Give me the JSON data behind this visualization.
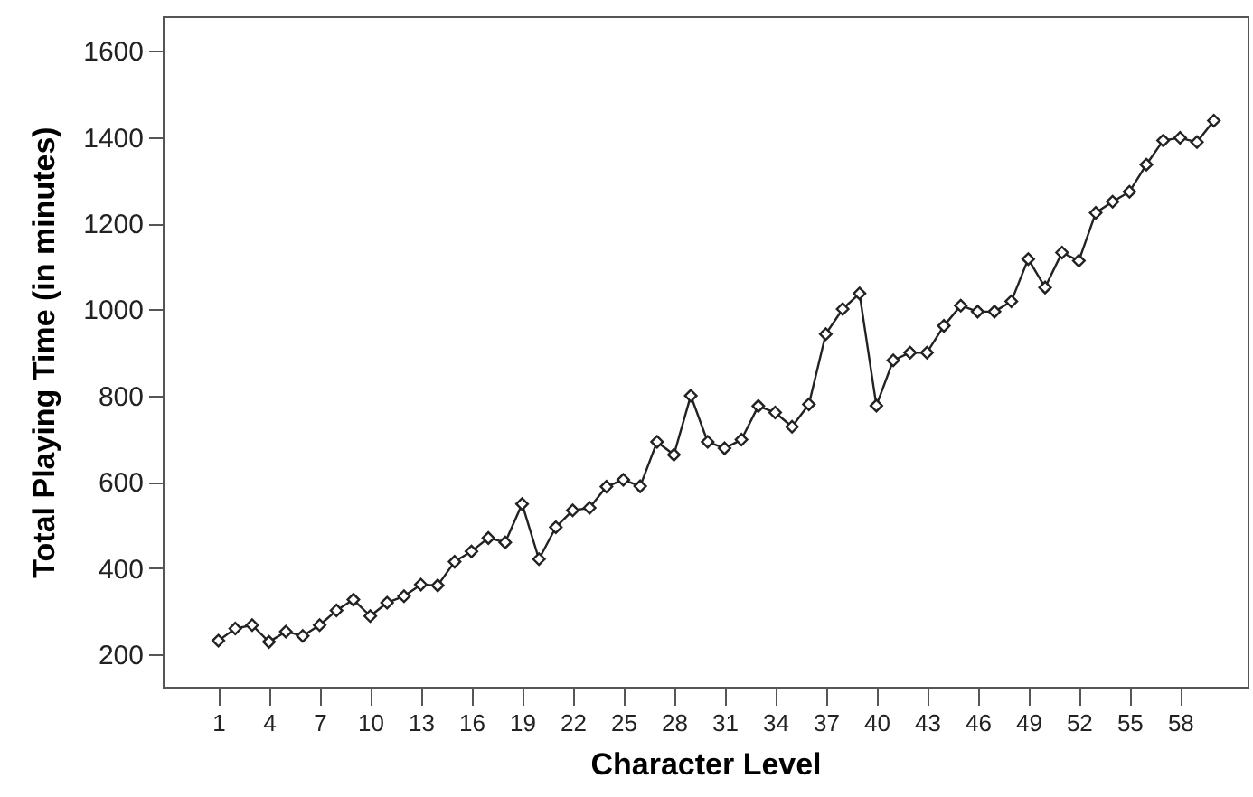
{
  "chart_data": {
    "type": "line",
    "xlabel": "Character Level",
    "ylabel": "Total Playing Time (in minutes)",
    "x": [
      1,
      2,
      3,
      4,
      5,
      6,
      7,
      8,
      9,
      10,
      11,
      12,
      13,
      14,
      15,
      16,
      17,
      18,
      19,
      20,
      21,
      22,
      23,
      24,
      25,
      26,
      27,
      28,
      29,
      30,
      31,
      32,
      33,
      34,
      35,
      36,
      37,
      38,
      39,
      40,
      41,
      42,
      43,
      44,
      45,
      46,
      47,
      48,
      49,
      50,
      51,
      52,
      53,
      54,
      55,
      56,
      57,
      58,
      59,
      60
    ],
    "series": [
      {
        "color": "#222222",
        "values": [
          232,
          260,
          268,
          229,
          253,
          243,
          268,
          302,
          327,
          289,
          320,
          335,
          362,
          360,
          415,
          439,
          470,
          460,
          549,
          421,
          495,
          534,
          540,
          589,
          605,
          590,
          693,
          663,
          800,
          693,
          678,
          698,
          776,
          761,
          728,
          780,
          943,
          1001,
          1037,
          777,
          882,
          900,
          900,
          962,
          1009,
          995,
          995,
          1019,
          1117,
          1051,
          1132,
          1113,
          1224,
          1250,
          1273,
          1336,
          1392,
          1398,
          1388,
          1438
        ]
      }
    ],
    "xlim": [
      -2.3,
      62
    ],
    "xticks": [
      1,
      4,
      7,
      10,
      13,
      16,
      19,
      22,
      25,
      28,
      31,
      34,
      37,
      40,
      43,
      46,
      49,
      52,
      55,
      58
    ],
    "ylim": [
      125,
      1680
    ],
    "yticks": [
      200,
      400,
      600,
      800,
      1000,
      1200,
      1400,
      1600
    ],
    "grid": false,
    "marker": "diamond",
    "line_style": "solid"
  }
}
